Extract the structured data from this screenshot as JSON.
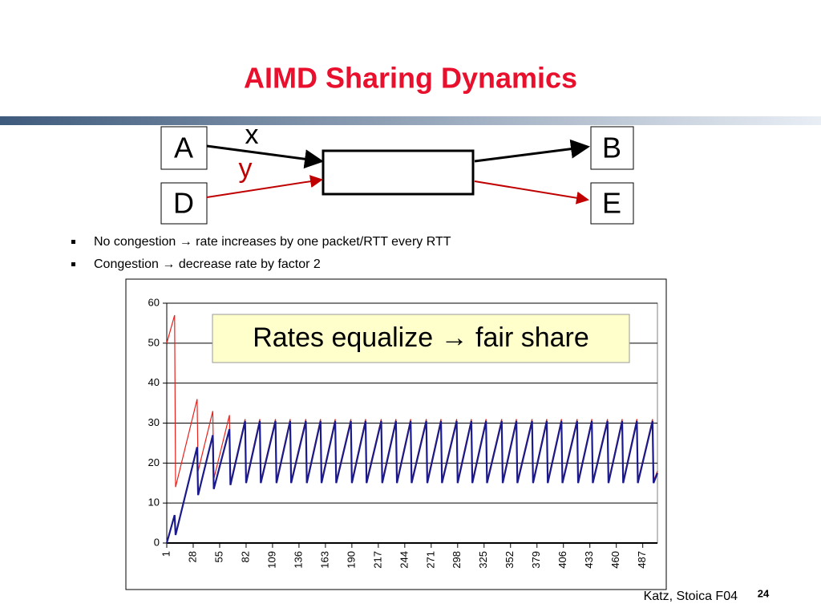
{
  "slide": {
    "title": "AIMD Sharing Dynamics",
    "diagram": {
      "nodes": [
        "A",
        "B",
        "D",
        "E"
      ],
      "flow_labels": [
        "x",
        "y"
      ]
    },
    "bullets": [
      "No congestion → rate increases by one packet/RTT every RTT",
      "Congestion → decrease rate by factor 2"
    ],
    "footer": "Katz, Stoica F04",
    "page_number": "24"
  },
  "chart_data": {
    "type": "line",
    "annotation": "Rates equalize → fair share",
    "xlim": [
      1,
      502
    ],
    "xticks": [
      1,
      28,
      55,
      82,
      109,
      136,
      163,
      190,
      217,
      244,
      271,
      298,
      325,
      352,
      379,
      406,
      433,
      460,
      487
    ],
    "ylim": [
      0,
      60
    ],
    "yticks": [
      0,
      10,
      20,
      30,
      40,
      50,
      60
    ],
    "grid": true,
    "series": [
      {
        "color": "#e8221c",
        "x": [
          1,
          9,
          10,
          32,
          33,
          48,
          49,
          65,
          66,
          81,
          82,
          96,
          97,
          112,
          113,
          127,
          128,
          143,
          144,
          158,
          159,
          173,
          174,
          189,
          190,
          204,
          205,
          220,
          221,
          235,
          236,
          250,
          251,
          266,
          267,
          281,
          282,
          297,
          298,
          312,
          313,
          327,
          328,
          343,
          344,
          358,
          359,
          374,
          375,
          389,
          390,
          404,
          405,
          420,
          421,
          435,
          436,
          451,
          452,
          466,
          467,
          481,
          482,
          497,
          498,
          502
        ],
        "values": [
          50,
          57,
          14,
          36,
          18,
          33,
          16,
          32,
          15,
          31,
          15.5,
          31,
          15.5,
          31,
          15.5,
          31,
          15.5,
          31,
          15.5,
          31,
          15.5,
          31,
          15.5,
          31,
          15.5,
          31,
          15.5,
          31,
          15.5,
          31,
          15.5,
          31,
          15.5,
          31,
          15.5,
          31,
          15.5,
          31,
          15.5,
          31,
          15.5,
          31,
          15.5,
          31,
          15.5,
          31,
          15.5,
          31,
          15.5,
          31,
          15.5,
          31,
          15.5,
          31,
          15.5,
          31,
          15.5,
          31,
          15.5,
          31,
          15.5,
          31,
          15.5,
          31,
          15.5,
          18
        ]
      },
      {
        "color": "#1a1a8c",
        "x": [
          1,
          9,
          10,
          32,
          33,
          48,
          49,
          65,
          66,
          81,
          82,
          96,
          97,
          112,
          113,
          127,
          128,
          143,
          144,
          158,
          159,
          173,
          174,
          189,
          190,
          204,
          205,
          220,
          221,
          235,
          236,
          250,
          251,
          266,
          267,
          281,
          282,
          297,
          298,
          312,
          313,
          327,
          328,
          343,
          344,
          358,
          359,
          374,
          375,
          389,
          390,
          404,
          405,
          420,
          421,
          435,
          436,
          451,
          452,
          466,
          467,
          481,
          482,
          497,
          498,
          502
        ],
        "values": [
          0,
          7,
          2,
          24,
          12,
          27,
          13.5,
          28.5,
          14.5,
          30.5,
          15,
          30.5,
          15,
          30.5,
          15,
          30.5,
          15,
          30.5,
          15,
          30.5,
          15,
          30.5,
          15,
          30.5,
          15,
          30.5,
          15,
          30.5,
          15,
          30.5,
          15,
          30.5,
          15,
          30.5,
          15,
          30.5,
          15,
          30.5,
          15,
          30.5,
          15,
          30.5,
          15,
          30.5,
          15,
          30.5,
          15,
          30.5,
          15,
          30.5,
          15,
          30.5,
          15,
          30.5,
          15,
          30.5,
          15,
          30.5,
          15,
          30.5,
          15,
          30.5,
          15,
          30.5,
          15,
          17.5
        ]
      }
    ]
  }
}
